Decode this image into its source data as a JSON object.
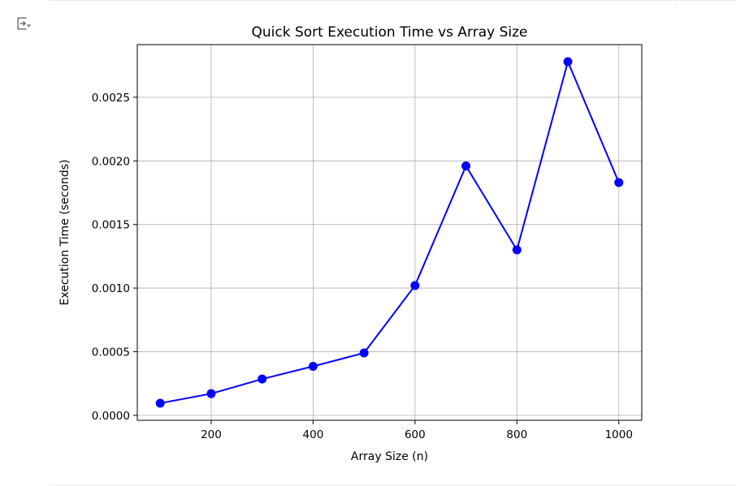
{
  "toolbar": {
    "output_toggle_icon": "output-collapse-icon"
  },
  "chart_data": {
    "type": "line",
    "title": "Quick Sort Execution Time vs Array Size",
    "xlabel": "Array Size (n)",
    "ylabel": "Execution Time (seconds)",
    "x": [
      100,
      200,
      300,
      400,
      500,
      600,
      700,
      800,
      900,
      1000
    ],
    "series": [
      {
        "values": [
          9.5e-05,
          0.00017,
          0.000285,
          0.000385,
          0.00049,
          0.00102,
          0.00196,
          0.0013,
          0.00278,
          0.00183
        ],
        "color": "#0000ff",
        "marker": "circle"
      }
    ],
    "xlim": [
      55,
      1045
    ],
    "ylim": [
      -3.93e-05,
      0.002914
    ],
    "xticks": [
      200,
      400,
      600,
      800,
      1000
    ],
    "xtick_labels": [
      "200",
      "400",
      "600",
      "800",
      "1000"
    ],
    "yticks": [
      0,
      0.0005,
      0.001,
      0.0015,
      0.002,
      0.0025
    ],
    "ytick_labels": [
      "0.0000",
      "0.0005",
      "0.0010",
      "0.0015",
      "0.0020",
      "0.0025"
    ],
    "grid": true,
    "legend": false
  }
}
